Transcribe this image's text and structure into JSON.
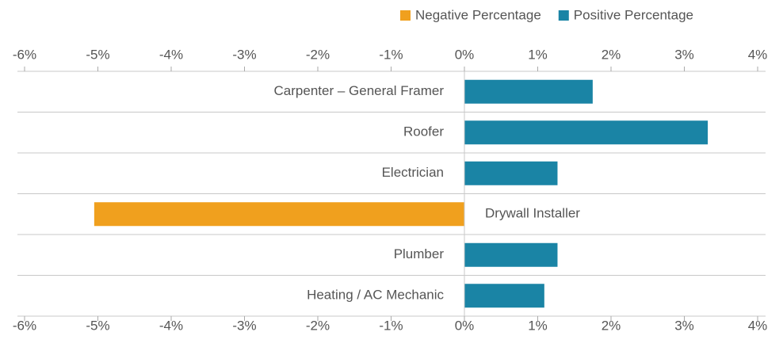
{
  "chart_data": {
    "type": "bar",
    "orientation": "horizontal",
    "categories": [
      "Carpenter – General Framer",
      "Roofer",
      "Electrician",
      "Drywall Installer",
      "Plumber",
      "Heating / AC Mechanic"
    ],
    "series": [
      {
        "name": "Negative Percentage",
        "color": "#f0a01e",
        "values": [
          null,
          null,
          null,
          -5.05,
          null,
          null
        ]
      },
      {
        "name": "Positive Percentage",
        "color": "#1a84a5",
        "values": [
          1.75,
          3.32,
          1.27,
          null,
          1.27,
          1.09
        ]
      }
    ],
    "xlim": [
      -6,
      4
    ],
    "xticks": [
      {
        "value": -6,
        "label": "-6%"
      },
      {
        "value": -5,
        "label": "-5%"
      },
      {
        "value": -4,
        "label": "-4%"
      },
      {
        "value": -3,
        "label": "-3%"
      },
      {
        "value": -2,
        "label": "-2%"
      },
      {
        "value": -1,
        "label": "-1%"
      },
      {
        "value": 0,
        "label": "0%"
      },
      {
        "value": 1,
        "label": "1%"
      },
      {
        "value": 2,
        "label": "2%"
      },
      {
        "value": 3,
        "label": "3%"
      },
      {
        "value": 4,
        "label": "4%"
      }
    ],
    "legend": "top-right"
  }
}
